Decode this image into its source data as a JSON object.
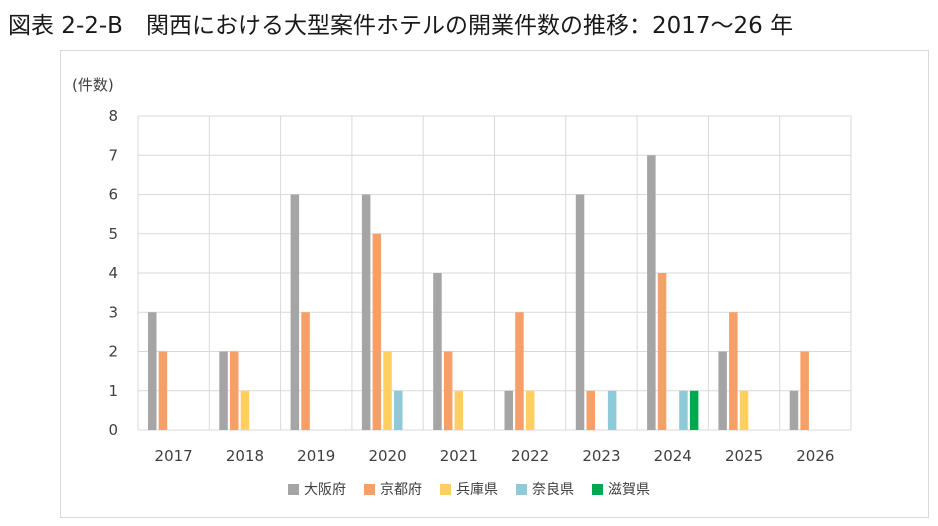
{
  "figure": {
    "title": "図表 2-2-B　関西における大型案件ホテルの開業件数の推移：2017～26 年",
    "unit_label": "(件数)"
  },
  "chart_data": {
    "type": "bar",
    "title": "関西における大型案件ホテルの開業件数の推移：2017～26 年",
    "xlabel": "",
    "ylabel": "(件数)",
    "ylim": [
      0,
      8
    ],
    "yticks": [
      0,
      1,
      2,
      3,
      4,
      5,
      6,
      7,
      8
    ],
    "grid": true,
    "legend_position": "bottom",
    "categories": [
      "2017",
      "2018",
      "2019",
      "2020",
      "2021",
      "2022",
      "2023",
      "2024",
      "2025",
      "2026"
    ],
    "series": [
      {
        "name": "大阪府",
        "color": "#a5a5a5",
        "values": [
          3,
          2,
          6,
          6,
          4,
          1,
          6,
          7,
          2,
          1
        ]
      },
      {
        "name": "京都府",
        "color": "#f4a068",
        "values": [
          2,
          2,
          3,
          5,
          2,
          3,
          1,
          4,
          3,
          2
        ]
      },
      {
        "name": "兵庫県",
        "color": "#ffd05f",
        "values": [
          0,
          1,
          0,
          2,
          1,
          1,
          0,
          0,
          1,
          0
        ]
      },
      {
        "name": "奈良県",
        "color": "#8fcad8",
        "values": [
          0,
          0,
          0,
          1,
          0,
          0,
          1,
          1,
          0,
          0
        ]
      },
      {
        "name": "滋賀県",
        "color": "#00a84f",
        "values": [
          0,
          0,
          0,
          0,
          0,
          0,
          0,
          1,
          0,
          0
        ]
      }
    ]
  }
}
